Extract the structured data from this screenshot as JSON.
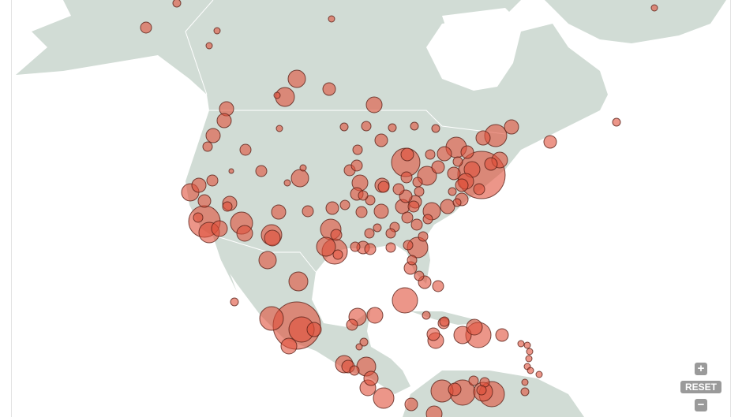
{
  "controls": {
    "zoom_in": "+",
    "reset": "RESET",
    "zoom_out": "−"
  },
  "colors": {
    "land": "#d1dcd5",
    "water": "#ffffff",
    "marker_fill": "#e0503a",
    "marker_stroke": "#5a2018",
    "borders": "#ffffff",
    "controls": "#9a9a9a"
  }
}
